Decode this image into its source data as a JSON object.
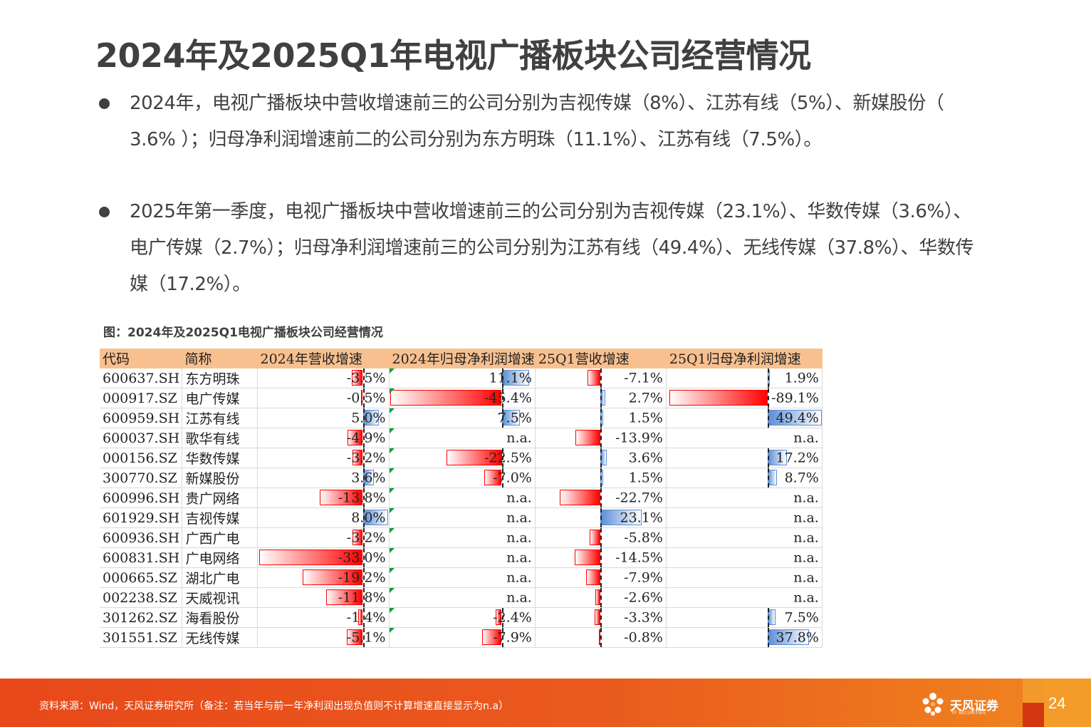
{
  "slide": {
    "title": "2024年及2025Q1年电视广播板块公司经营情况",
    "bullets": [
      "2024年，电视广播板块中营收增速前三的公司分别为吉视传媒（8%）、江苏有线（5%）、新媒股份（ 3.6% ）；归母净利润增速前二的公司分别为东方明珠（11.1%）、江苏有线（7.5%）。",
      "2025年第一季度，电视广播板块中营收增速前三的公司分别为吉视传媒（23.1%）、华数传媒（3.6%）、电广传媒（2.7%）；归母净利润增速前三的公司分别为江苏有线（49.4%）、无线传媒（37.8%）、华数传媒（17.2%）。"
    ]
  },
  "figure": {
    "caption": "图：2024年及2025Q1电视广播板块公司经营情况",
    "headers": [
      "代码",
      "简称",
      "2024年营收增速",
      "2024年归母净利润增速",
      "25Q1营收增速",
      "25Q1归母净利润增速"
    ],
    "rows": [
      {
        "code": "600637.SH",
        "name": "东方明珠",
        "rev24": "-3.5%",
        "np24": "11.1%",
        "rev25": "-7.1%",
        "np25": "1.9%"
      },
      {
        "code": "000917.SZ",
        "name": "电广传媒",
        "rev24": "-0.5%",
        "np24": "-45.4%",
        "rev25": "2.7%",
        "np25": "-89.1%"
      },
      {
        "code": "600959.SH",
        "name": "江苏有线",
        "rev24": "5.0%",
        "np24": "7.5%",
        "rev25": "1.5%",
        "np25": "49.4%"
      },
      {
        "code": "600037.SH",
        "name": "歌华有线",
        "rev24": "-4.9%",
        "np24": "n.a.",
        "rev25": "-13.9%",
        "np25": "n.a."
      },
      {
        "code": "000156.SZ",
        "name": "华数传媒",
        "rev24": "-3.2%",
        "np24": "-22.5%",
        "rev25": "3.6%",
        "np25": "17.2%"
      },
      {
        "code": "300770.SZ",
        "name": "新媒股份",
        "rev24": "3.6%",
        "np24": "-7.0%",
        "rev25": "1.5%",
        "np25": "8.7%"
      },
      {
        "code": "600996.SH",
        "name": "贵广网络",
        "rev24": "-13.8%",
        "np24": "n.a.",
        "rev25": "-22.7%",
        "np25": "n.a."
      },
      {
        "code": "601929.SH",
        "name": "吉视传媒",
        "rev24": "8.0%",
        "np24": "n.a.",
        "rev25": "23.1%",
        "np25": "n.a."
      },
      {
        "code": "600936.SH",
        "name": "广西广电",
        "rev24": "-3.2%",
        "np24": "n.a.",
        "rev25": "-5.8%",
        "np25": "n.a."
      },
      {
        "code": "600831.SH",
        "name": "广电网络",
        "rev24": "-33.0%",
        "np24": "n.a.",
        "rev25": "-14.5%",
        "np25": "n.a."
      },
      {
        "code": "000665.SZ",
        "name": "湖北广电",
        "rev24": "-19.2%",
        "np24": "n.a.",
        "rev25": "-7.9%",
        "np25": "n.a."
      },
      {
        "code": "002238.SZ",
        "name": "天威视讯",
        "rev24": "-11.8%",
        "np24": "n.a.",
        "rev25": "-2.6%",
        "np25": "n.a."
      },
      {
        "code": "301262.SZ",
        "name": "海看股份",
        "rev24": "-1.4%",
        "np24": "-2.4%",
        "rev25": "-3.3%",
        "np25": "7.5%"
      },
      {
        "code": "301551.SZ",
        "name": "无线传媒",
        "rev24": "-5.1%",
        "np24": "-7.9%",
        "rev25": "-0.8%",
        "np25": "37.8%"
      }
    ],
    "colors": {
      "negative_bar": "#ff0000",
      "positive_bar": "#5b8fd6",
      "header_bg": "#f8c08f",
      "marker": "#0a9e3a"
    }
  },
  "footer": {
    "source": "资料来源：Wind，天风证券研究所（备注：若当年与前一年净利润出现负值则不计算增速直接显示为n.a）",
    "logo_cn": "天风证券",
    "logo_en": "TF SECURITIES",
    "logo_icon": "tf-flower-logo-icon",
    "page_number": "24"
  }
}
